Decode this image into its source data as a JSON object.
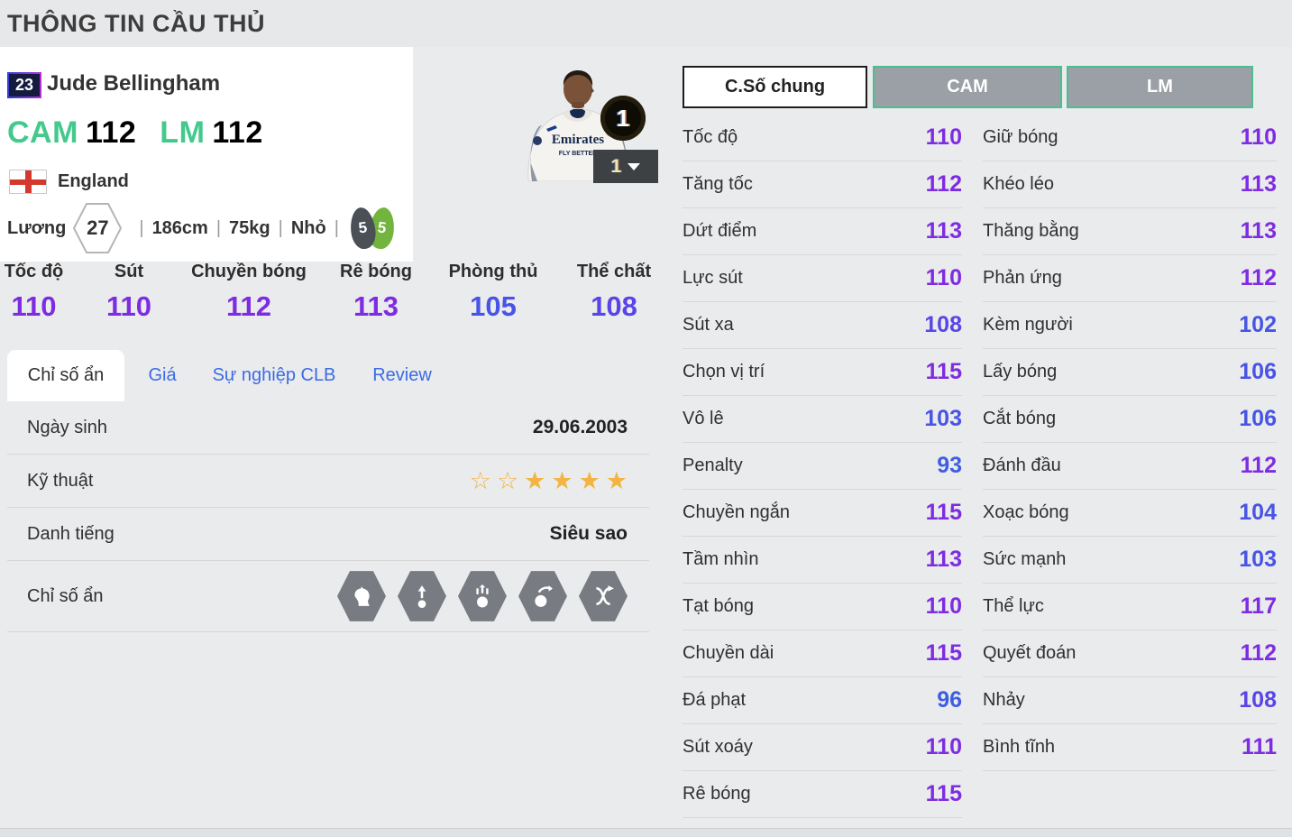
{
  "page": {
    "title": "THÔNG TIN CẦU THỦ"
  },
  "player": {
    "number": "23",
    "name": "Jude Bellingham",
    "positions": [
      {
        "label": "CAM",
        "rating": 112
      },
      {
        "label": "LM",
        "rating": 112
      }
    ],
    "nation": "England",
    "wage_label": "Lương",
    "wage": "27",
    "height": "186cm",
    "weight": "75kg",
    "body_type": "Nhỏ",
    "foot_left": "5",
    "foot_right": "5",
    "level_badge": "1",
    "level_dropdown_value": "1"
  },
  "summary_stats": [
    {
      "label": "Tốc độ",
      "value": 110
    },
    {
      "label": "Sút",
      "value": 110
    },
    {
      "label": "Chuyền bóng",
      "value": 112
    },
    {
      "label": "Rê bóng",
      "value": 113
    },
    {
      "label": "Phòng thủ",
      "value": 105
    },
    {
      "label": "Thể chất",
      "value": 108
    }
  ],
  "tabs": [
    {
      "label": "Chỉ số ẩn",
      "active": true
    },
    {
      "label": "Giá",
      "active": false
    },
    {
      "label": "Sự nghiệp CLB",
      "active": false
    },
    {
      "label": "Review",
      "active": false
    }
  ],
  "info_table": {
    "birth_label": "Ngày sinh",
    "birth_value": "29.06.2003",
    "skill_label": "Kỹ thuật",
    "stars_total": 6,
    "stars_filled": 4,
    "fame_label": "Danh tiếng",
    "fame_value": "Siêu sao",
    "hidden_label": "Chỉ số ẩn",
    "hidden_icons": [
      "hidden-stat-head-icon",
      "hidden-stat-long-throw-icon",
      "hidden-stat-power-header-icon",
      "hidden-stat-curve-shot-icon",
      "hidden-stat-trickster-icon"
    ]
  },
  "detail_buttons": {
    "overall": "C.Số chung",
    "pos1": "CAM",
    "pos2": "LM"
  },
  "detail_stats_left": [
    {
      "label": "Tốc độ",
      "value": 110
    },
    {
      "label": "Tăng tốc",
      "value": 112
    },
    {
      "label": "Dứt điểm",
      "value": 113
    },
    {
      "label": "Lực sút",
      "value": 110
    },
    {
      "label": "Sút xa",
      "value": 108
    },
    {
      "label": "Chọn vị trí",
      "value": 115
    },
    {
      "label": "Vô lê",
      "value": 103
    },
    {
      "label": "Penalty",
      "value": 93
    },
    {
      "label": "Chuyền ngắn",
      "value": 115
    },
    {
      "label": "Tầm nhìn",
      "value": 113
    },
    {
      "label": "Tạt bóng",
      "value": 110
    },
    {
      "label": "Chuyền dài",
      "value": 115
    },
    {
      "label": "Đá phạt",
      "value": 96
    },
    {
      "label": "Sút xoáy",
      "value": 110
    },
    {
      "label": "Rê bóng",
      "value": 115
    }
  ],
  "detail_stats_right": [
    {
      "label": "Giữ bóng",
      "value": 110
    },
    {
      "label": "Khéo léo",
      "value": 113
    },
    {
      "label": "Thăng bằng",
      "value": 113
    },
    {
      "label": "Phản ứng",
      "value": 112
    },
    {
      "label": "Kèm người",
      "value": 102
    },
    {
      "label": "Lấy bóng",
      "value": 106
    },
    {
      "label": "Cắt bóng",
      "value": 106
    },
    {
      "label": "Đánh đầu",
      "value": 112
    },
    {
      "label": "Xoạc bóng",
      "value": 104
    },
    {
      "label": "Sức mạnh",
      "value": 103
    },
    {
      "label": "Thể lực",
      "value": 117
    },
    {
      "label": "Quyết đoán",
      "value": 112
    },
    {
      "label": "Nhảy",
      "value": 108
    },
    {
      "label": "Bình tĩnh",
      "value": 111
    }
  ],
  "colors": {
    "accent_green": "#44c98d",
    "button_border_green": "#4cbf8d",
    "star_gold": "#f2b544",
    "value_scale": {
      "high": "#7e2ce2",
      "mid": "#5a44e8",
      "low": "#4754e6",
      "lowest": "#3e5ee2",
      "thresholds": [
        110,
        107,
        100
      ]
    }
  }
}
